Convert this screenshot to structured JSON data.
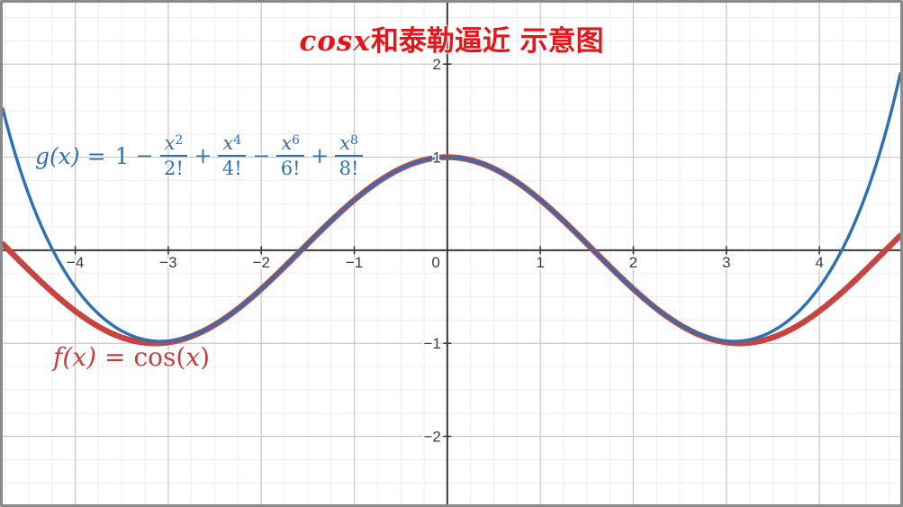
{
  "title": {
    "math_part": "cosx",
    "chinese_part": "和泰勒逼近 示意图",
    "color": "#e3171b"
  },
  "f_label": {
    "lhs": "f(x)",
    "eq": "=",
    "func": "cos(",
    "arg": "x",
    "close": ")",
    "color": "#c74440"
  },
  "g_label": {
    "lhs": "g(x)",
    "eq": "=",
    "first_term": "1",
    "terms": [
      {
        "op": "−",
        "num_base": "x",
        "num_exp": "2",
        "den": "2!"
      },
      {
        "op": "+",
        "num_base": "x",
        "num_exp": "4",
        "den": "4!"
      },
      {
        "op": "−",
        "num_base": "x",
        "num_exp": "6",
        "den": "6!"
      },
      {
        "op": "+",
        "num_base": "x",
        "num_exp": "8",
        "den": "8!"
      }
    ],
    "color": "#2d70b3"
  },
  "chart_data": {
    "type": "line",
    "title": "cosx和泰勒逼近 示意图",
    "x_range": [
      -4.78,
      4.87
    ],
    "y_range": [
      -2.73,
      2.66
    ],
    "grid": {
      "minor_step": 0.25,
      "major_step": 1,
      "minor_color": "#ededed",
      "major_color": "#c6c6c6"
    },
    "axis_color": "#3a3a3a",
    "origin_label": "0",
    "x_ticks": [
      {
        "v": -4,
        "label": "−4"
      },
      {
        "v": -3,
        "label": "−3"
      },
      {
        "v": -2,
        "label": "−2"
      },
      {
        "v": -1,
        "label": "−1"
      },
      {
        "v": 1,
        "label": "1"
      },
      {
        "v": 2,
        "label": "2"
      },
      {
        "v": 3,
        "label": "3"
      },
      {
        "v": 4,
        "label": "4"
      }
    ],
    "y_ticks": [
      {
        "v": 2,
        "label": "2"
      },
      {
        "v": 1,
        "label": "1"
      },
      {
        "v": -1,
        "label": "−1"
      },
      {
        "v": -2,
        "label": "−2"
      }
    ],
    "series": [
      {
        "name": "f(x) = cos(x)",
        "kind": "cos",
        "color": "#c74440",
        "width": 6.5
      },
      {
        "name": "g(x) = 1 − x²/2! + x⁴/4! − x⁶/6! + x⁸/8!",
        "kind": "taylor",
        "powers": [
          0,
          2,
          4,
          6,
          8
        ],
        "color": "#2d70b3",
        "width": 3.4
      }
    ]
  }
}
